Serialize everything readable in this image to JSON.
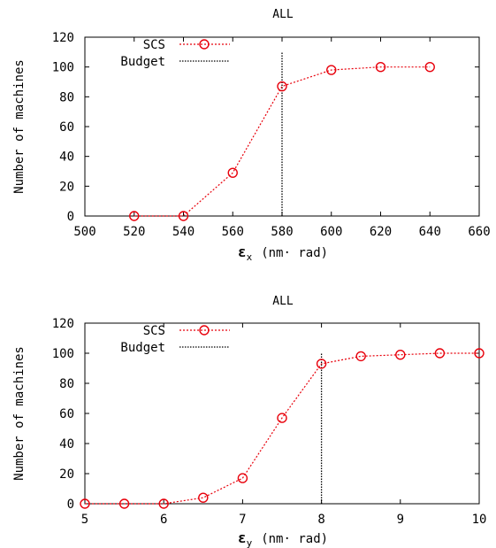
{
  "colors": {
    "scs": "#e8000b",
    "budget": "#000000",
    "axis": "#000000"
  },
  "chart_data": [
    {
      "type": "line",
      "title": "ALL",
      "xlabel_symbol": "ε",
      "xlabel_sub": "x",
      "xlabel_unit": "(nm· rad)",
      "ylabel": "Number of machines",
      "xlim": [
        500,
        660
      ],
      "ylim": [
        0,
        120
      ],
      "xticks": [
        500,
        520,
        540,
        560,
        580,
        600,
        620,
        640,
        660
      ],
      "yticks": [
        0,
        20,
        40,
        60,
        80,
        100,
        120
      ],
      "legend_position": "top-left",
      "series": [
        {
          "name": "SCS",
          "style": "dotted-circles",
          "x": [
            520,
            540,
            560,
            580,
            600,
            620,
            640
          ],
          "y": [
            0,
            0,
            29,
            87,
            98,
            100,
            100
          ]
        }
      ],
      "budget": {
        "name": "Budget",
        "x": 580,
        "y_range": [
          0,
          110
        ]
      }
    },
    {
      "type": "line",
      "title": "ALL",
      "xlabel_symbol": "ε",
      "xlabel_sub": "y",
      "xlabel_unit": "(nm· rad)",
      "ylabel": "Number of machines",
      "xlim": [
        5,
        10
      ],
      "ylim": [
        0,
        120
      ],
      "xticks": [
        5,
        6,
        7,
        8,
        9,
        10
      ],
      "yticks": [
        0,
        20,
        40,
        60,
        80,
        100,
        120
      ],
      "legend_position": "top-left",
      "series": [
        {
          "name": "SCS",
          "style": "dotted-circles",
          "x": [
            5,
            5.5,
            6,
            6.5,
            7,
            7.5,
            8,
            8.5,
            9,
            9.5,
            10
          ],
          "y": [
            0,
            0,
            0,
            4,
            17,
            57,
            93,
            98,
            99,
            100,
            100
          ]
        }
      ],
      "budget": {
        "name": "Budget",
        "x": 8,
        "y_range": [
          0,
          100
        ]
      }
    }
  ]
}
